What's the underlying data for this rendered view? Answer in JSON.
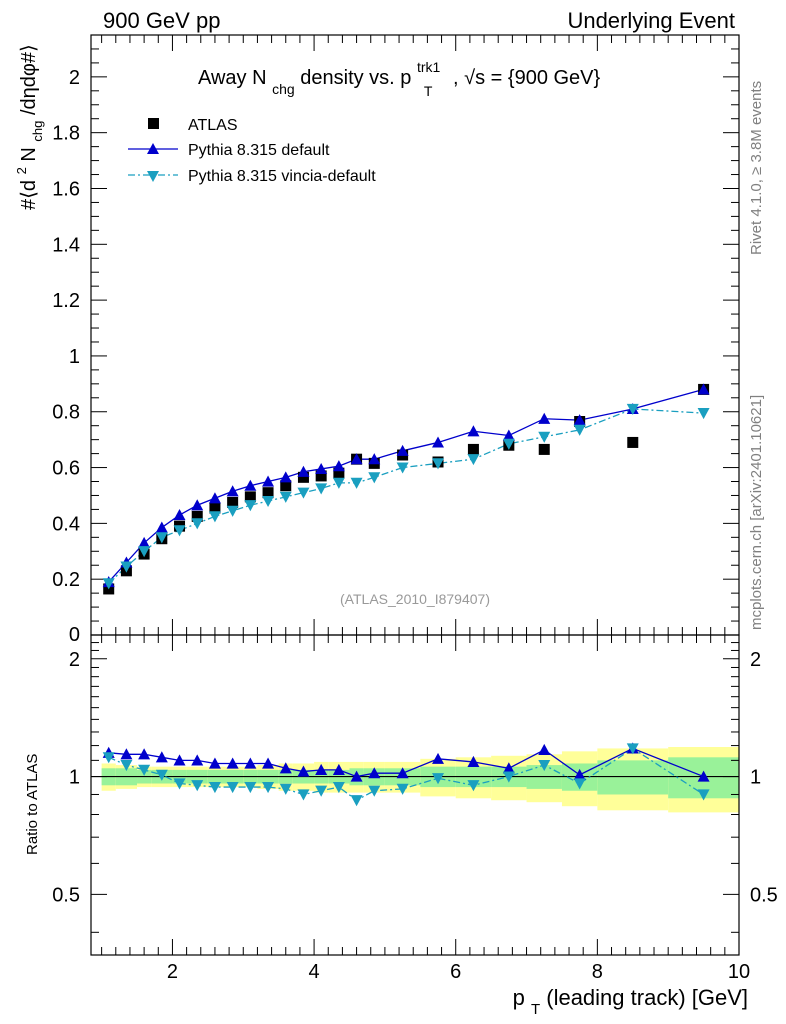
{
  "header": {
    "left": "900 GeV pp",
    "right": "Underlying Event"
  },
  "side_labels": {
    "rivet": "Rivet 4.1.0, ≥ 3.8M events",
    "mcplots": "mcplots.cern.ch [arXiv:2401.10621]"
  },
  "chart_data": [
    {
      "type": "scatter",
      "title": {
        "main": "Away N",
        "main_sub": "chg",
        "mid": " density vs. p",
        "mid_sup": "trk1",
        "mid_sub": "T",
        "end": ", √s = {900 GeV}"
      },
      "ylabel": {
        "a": "#⟨d",
        "a_sup": "2",
        "b": " N",
        "b_sub": "chg",
        "c": "/dηdφ#⟩"
      },
      "watermark": "(ATLAS_2010_I879407)",
      "xlim": [
        0.85,
        10.0
      ],
      "ylim": [
        0.0,
        2.15
      ],
      "yticks": [
        "0.2",
        "0.4",
        "0.6",
        "0.8",
        "1",
        "1.2",
        "1.4",
        "1.6",
        "1.8",
        "2"
      ],
      "ytick_values": [
        0.2,
        0.4,
        0.6,
        0.8,
        1.0,
        1.2,
        1.4,
        1.6,
        1.8,
        2.0
      ],
      "legend": [
        "ATLAS",
        "Pythia 8.315 default",
        "Pythia 8.315 vincia-default"
      ],
      "x": [
        1.1,
        1.35,
        1.6,
        1.85,
        2.1,
        2.35,
        2.6,
        2.85,
        3.1,
        3.35,
        3.6,
        3.85,
        4.1,
        4.35,
        4.6,
        4.85,
        5.25,
        5.75,
        6.25,
        6.75,
        7.25,
        7.75,
        8.5,
        9.5
      ],
      "series": [
        {
          "name": "ATLAS",
          "values": [
            0.165,
            0.23,
            0.29,
            0.345,
            0.39,
            0.425,
            0.455,
            0.475,
            0.495,
            0.51,
            0.535,
            0.565,
            0.57,
            0.58,
            0.63,
            0.615,
            0.645,
            0.62,
            0.665,
            0.68,
            0.665,
            0.765,
            0.69,
            0.88
          ]
        },
        {
          "name": "Pythia 8.315 default",
          "values": [
            0.19,
            0.26,
            0.33,
            0.385,
            0.43,
            0.465,
            0.49,
            0.515,
            0.535,
            0.55,
            0.565,
            0.585,
            0.595,
            0.605,
            0.63,
            0.63,
            0.66,
            0.69,
            0.73,
            0.715,
            0.775,
            0.77,
            0.81,
            0.88
          ]
        },
        {
          "name": "Pythia 8.315 vincia-default",
          "values": [
            0.185,
            0.245,
            0.3,
            0.35,
            0.375,
            0.4,
            0.425,
            0.445,
            0.465,
            0.48,
            0.495,
            0.51,
            0.525,
            0.545,
            0.545,
            0.565,
            0.6,
            0.615,
            0.63,
            0.685,
            0.71,
            0.735,
            0.81,
            0.795
          ]
        }
      ]
    },
    {
      "type": "scatter",
      "ylabel": "Ratio to ATLAS",
      "xlabel": {
        "a": "p",
        "a_sub": "T",
        "b": " (leading track) [GeV]"
      },
      "xlim": [
        0.85,
        10.0
      ],
      "ylim": [
        0.35,
        2.3
      ],
      "xticks": [
        "2",
        "4",
        "6",
        "8",
        "10"
      ],
      "xtick_values": [
        2,
        4,
        6,
        8,
        10
      ],
      "yticks": [
        "0.5",
        "1",
        "2"
      ],
      "ytick_values": [
        0.5,
        1.0,
        2.0
      ],
      "band_edges": [
        1.0,
        1.2,
        1.5,
        1.7,
        2.0,
        2.2,
        2.5,
        2.7,
        3.0,
        3.2,
        3.5,
        3.7,
        4.0,
        4.2,
        4.5,
        4.7,
        5.0,
        5.5,
        6.0,
        6.5,
        7.0,
        7.5,
        8.0,
        9.0,
        10.0
      ],
      "band_stat": [
        0.05,
        0.05,
        0.04,
        0.04,
        0.04,
        0.04,
        0.04,
        0.04,
        0.04,
        0.04,
        0.04,
        0.04,
        0.04,
        0.04,
        0.05,
        0.05,
        0.05,
        0.06,
        0.06,
        0.06,
        0.07,
        0.08,
        0.1,
        0.12
      ],
      "band_total": [
        0.08,
        0.07,
        0.06,
        0.06,
        0.06,
        0.06,
        0.06,
        0.06,
        0.06,
        0.07,
        0.08,
        0.08,
        0.09,
        0.09,
        0.09,
        0.09,
        0.09,
        0.11,
        0.12,
        0.13,
        0.14,
        0.16,
        0.18,
        0.19
      ],
      "series": [
        {
          "name": "Pythia 8.315 default",
          "values": [
            1.15,
            1.14,
            1.14,
            1.12,
            1.1,
            1.1,
            1.08,
            1.08,
            1.08,
            1.08,
            1.05,
            1.03,
            1.04,
            1.04,
            1.0,
            1.02,
            1.02,
            1.11,
            1.09,
            1.05,
            1.17,
            1.01,
            1.18,
            1.0
          ]
        },
        {
          "name": "Pythia 8.315 vincia-default",
          "values": [
            1.12,
            1.07,
            1.04,
            1.01,
            0.96,
            0.95,
            0.94,
            0.94,
            0.94,
            0.94,
            0.93,
            0.9,
            0.92,
            0.94,
            0.87,
            0.92,
            0.93,
            0.99,
            0.95,
            1.0,
            1.07,
            0.96,
            1.18,
            0.9
          ]
        }
      ]
    }
  ],
  "colors": {
    "atlas": "#000000",
    "default": "#0000cc",
    "vincia": "#1a9fc0",
    "band_stat": "#99f299",
    "band_total": "#ffff99",
    "watermark": "#999999",
    "side_text": "#808080"
  }
}
